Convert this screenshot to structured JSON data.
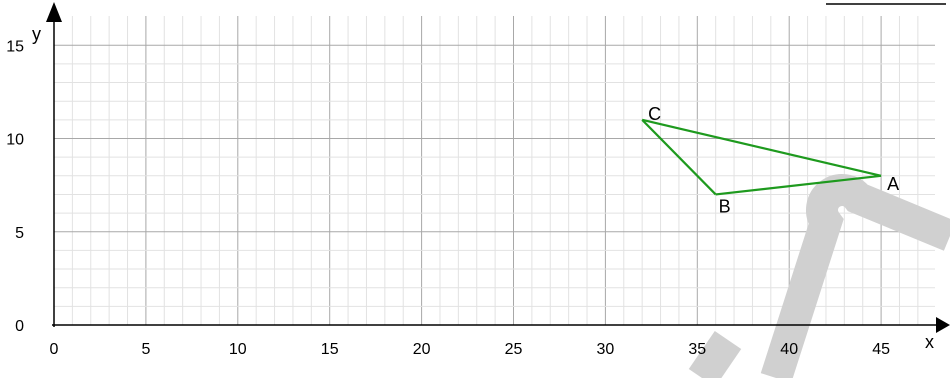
{
  "chart_data": {
    "type": "scatter",
    "x_axis": {
      "label": "x",
      "range": [
        0,
        47.5
      ],
      "major_step": 5,
      "minor_step": 1,
      "ticks": [
        0,
        5,
        10,
        15,
        20,
        25,
        30,
        35,
        40,
        45
      ]
    },
    "y_axis": {
      "label": "y",
      "range": [
        0,
        15.7
      ],
      "major_step": 5,
      "minor_step": 1,
      "ticks": [
        0,
        5,
        10,
        15
      ]
    },
    "points": [
      {
        "name": "A",
        "x": 45,
        "y": 8
      },
      {
        "name": "B",
        "x": 36,
        "y": 7
      },
      {
        "name": "C",
        "x": 32,
        "y": 11
      }
    ],
    "polygon": [
      "A",
      "B",
      "C"
    ],
    "edge_color": "#1e9a1e",
    "grid": true,
    "watermark_color": "#d0d0d0"
  }
}
